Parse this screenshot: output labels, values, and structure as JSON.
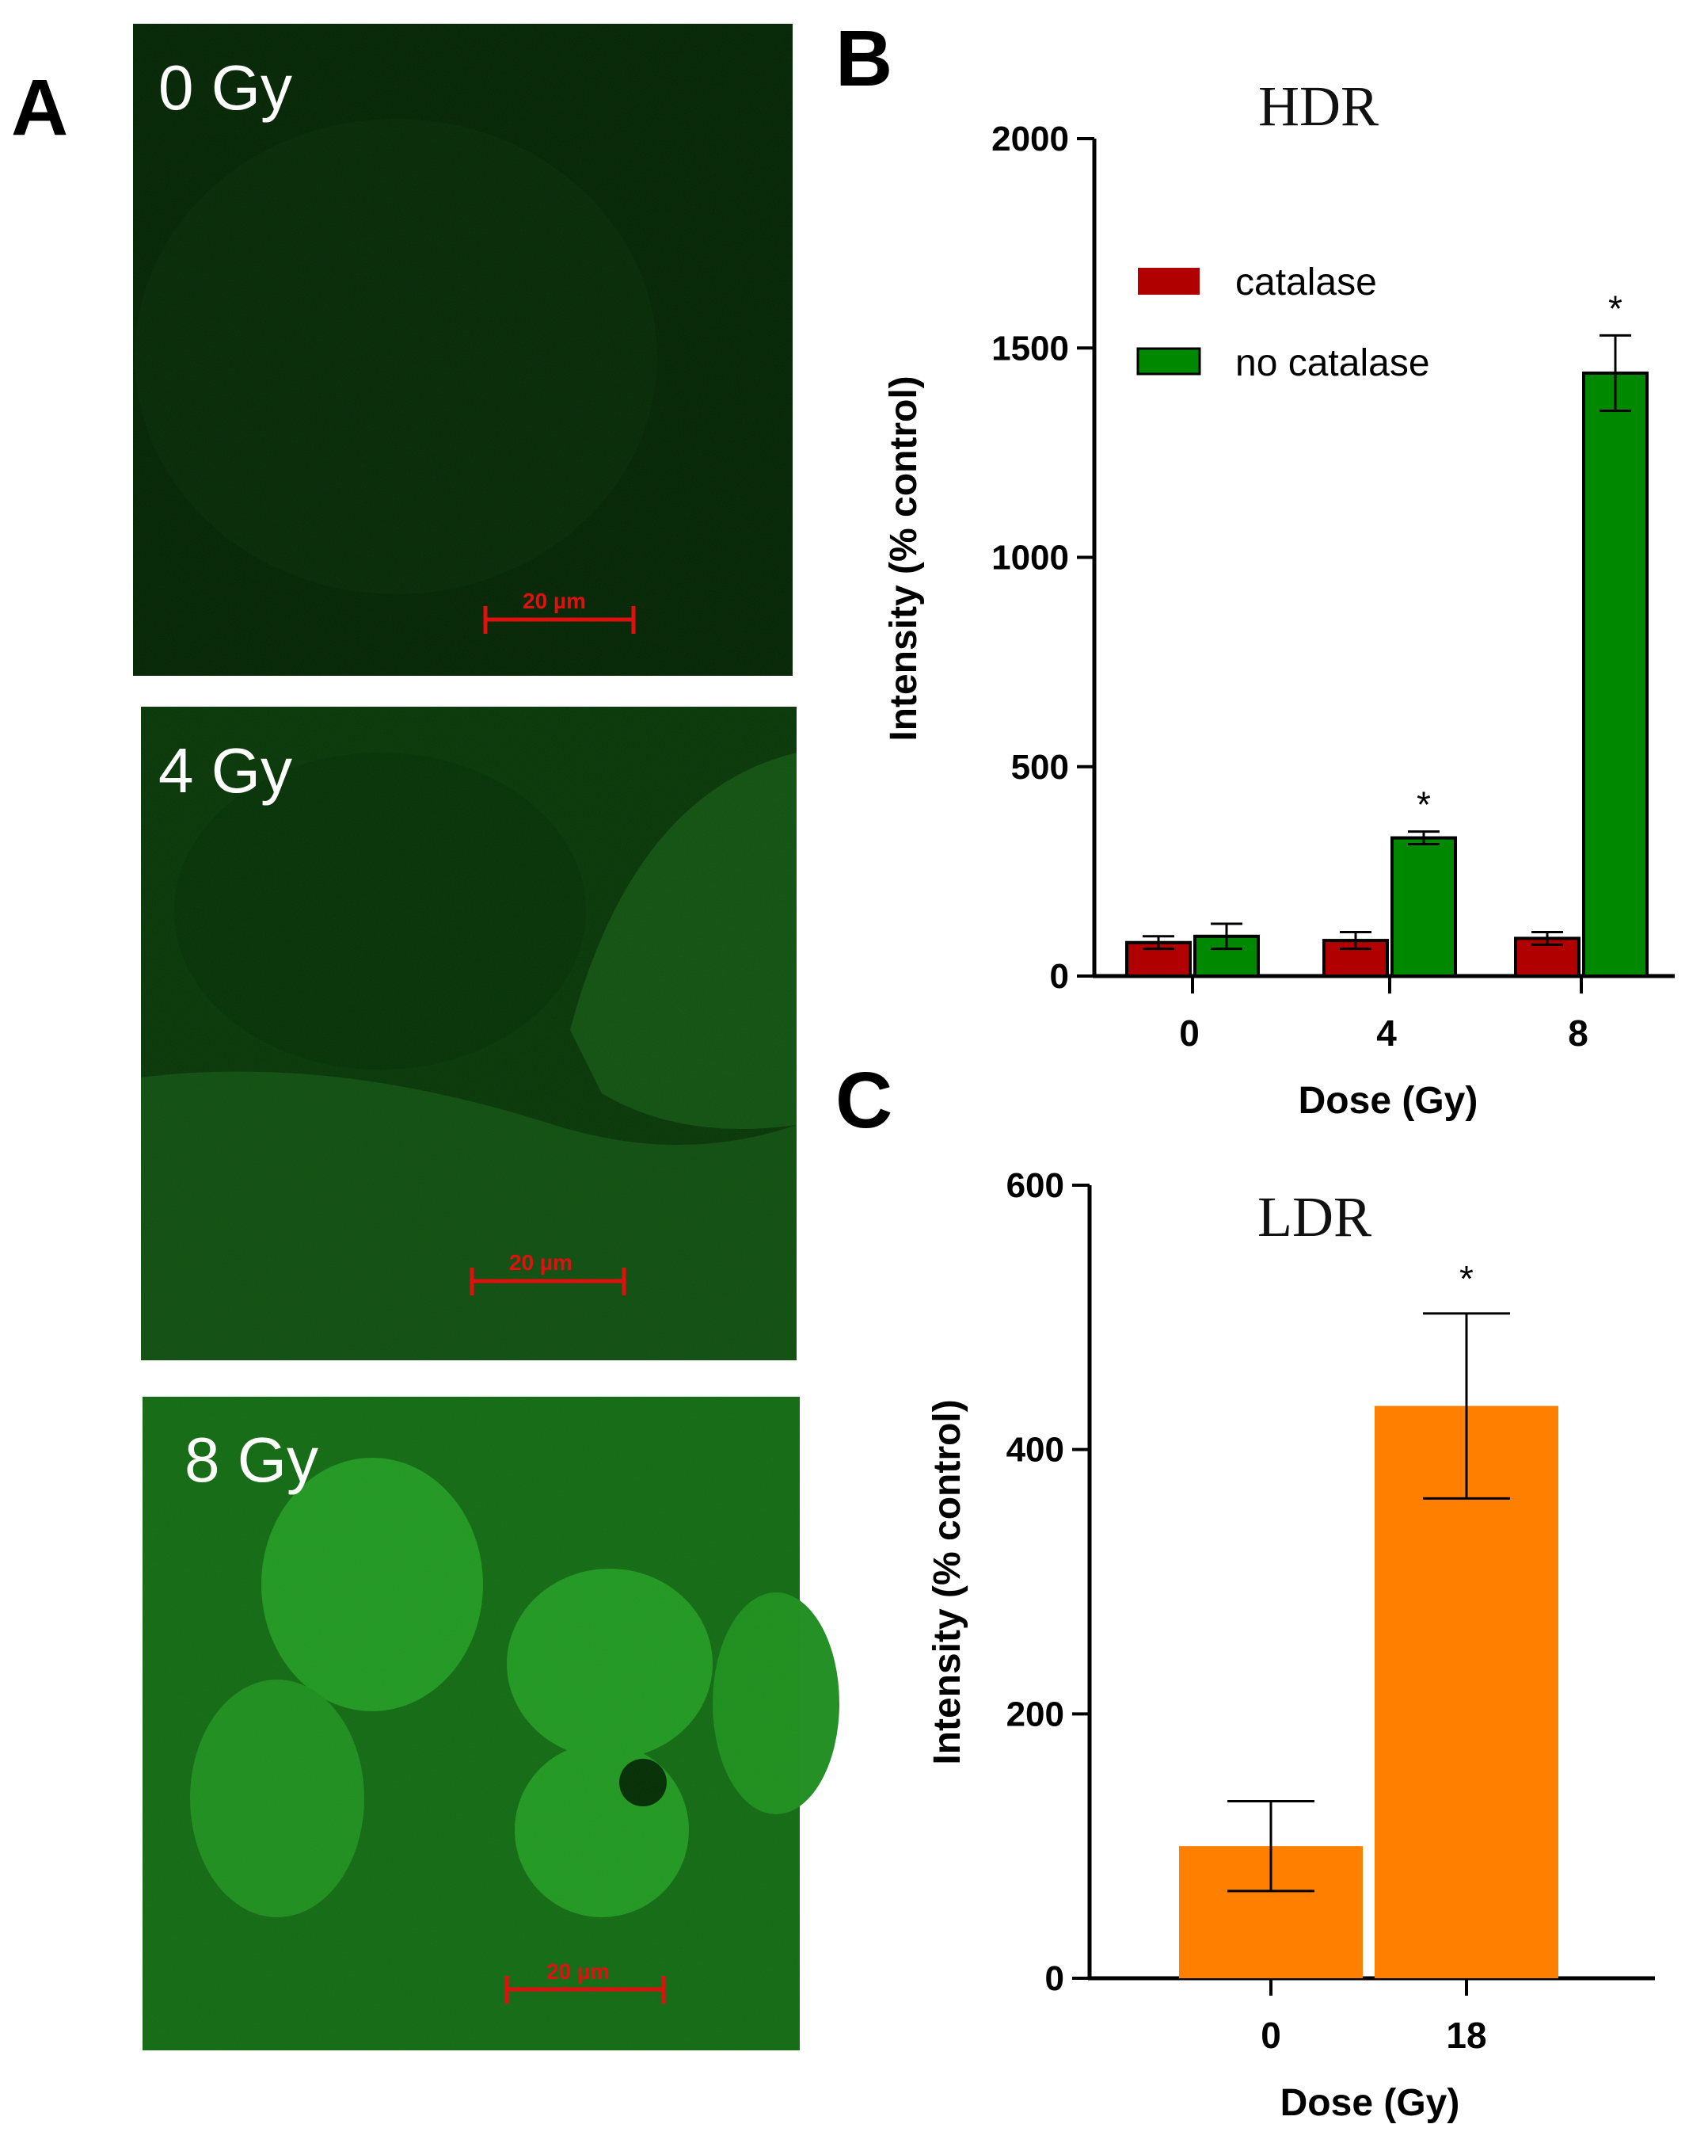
{
  "panel_a": {
    "letter": "A",
    "images": [
      {
        "label": "0 Gy",
        "scale_bar": "20 µm",
        "intensity": 0.08
      },
      {
        "label": "4 Gy",
        "scale_bar": "20 µm",
        "intensity": 0.3
      },
      {
        "label": "8 Gy",
        "scale_bar": "20 µm",
        "intensity": 0.85
      }
    ]
  },
  "panel_b": {
    "letter": "B"
  },
  "panel_c": {
    "letter": "C"
  },
  "colors": {
    "catalase": "#b00000",
    "no_catalase": "#008800",
    "ldr_bar": "#ff8000",
    "scale_bar": "#e01010"
  },
  "chart_data": [
    {
      "type": "bar",
      "title": "HDR",
      "xlabel": "Dose (Gy)",
      "ylabel": "Intensity (% control)",
      "categories": [
        "0",
        "4",
        "8"
      ],
      "ylim": [
        0,
        2000
      ],
      "yticks": [
        "0",
        "500",
        "1000",
        "1500",
        "2000"
      ],
      "legend_position": "upper-left",
      "series": [
        {
          "name": "catalase",
          "values": [
            80,
            85,
            90
          ],
          "errors": [
            15,
            20,
            15
          ]
        },
        {
          "name": "no catalase",
          "values": [
            95,
            330,
            1440
          ],
          "errors": [
            30,
            15,
            90
          ]
        }
      ],
      "annotations": [
        "",
        "*",
        "*"
      ]
    },
    {
      "type": "bar",
      "title": "LDR",
      "xlabel": "Dose (Gy)",
      "ylabel": "Intensity (% control)",
      "categories": [
        "0",
        "18"
      ],
      "ylim": [
        0,
        600
      ],
      "yticks": [
        "0",
        "200",
        "400",
        "600"
      ],
      "series": [
        {
          "values": [
            100,
            433
          ],
          "errors": [
            34,
            70
          ]
        }
      ],
      "annotations": [
        "",
        "*"
      ]
    }
  ]
}
